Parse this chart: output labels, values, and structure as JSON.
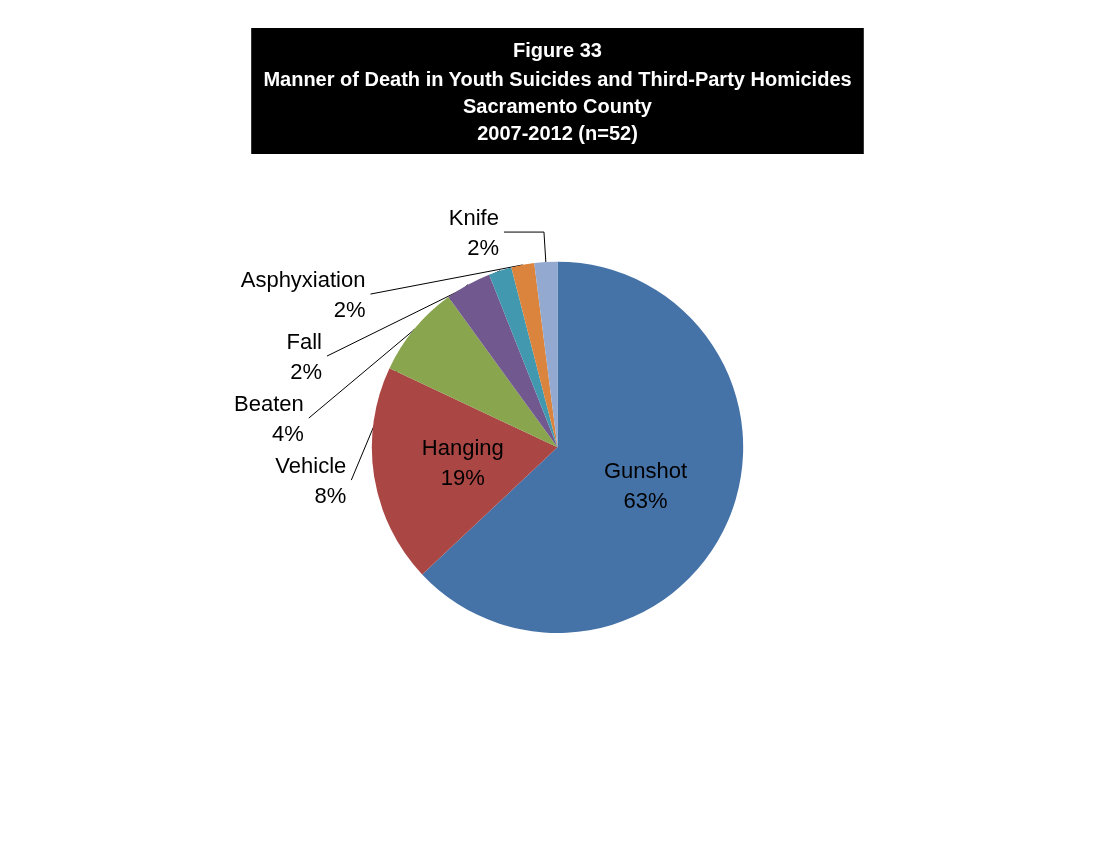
{
  "chart_data": {
    "type": "pie",
    "title": "Figure 33",
    "subtitle": "Manner of Death in Youth Suicides and Third-Party Homicides\nSacramento County\n2007-2012 (n=52)",
    "categories": [
      "Gunshot",
      "Hanging",
      "Vehicle",
      "Beaten",
      "Fall",
      "Asphyxiation",
      "Knife"
    ],
    "values": [
      63,
      19,
      8,
      4,
      2,
      2,
      2
    ],
    "colors": [
      "#4572a7",
      "#aa4643",
      "#89a54e",
      "#71588f",
      "#4198af",
      "#db843d",
      "#93a9cf"
    ],
    "value_labels": [
      "63%",
      "19%",
      "8%",
      "4%",
      "2%",
      "2%",
      "2%"
    ]
  }
}
